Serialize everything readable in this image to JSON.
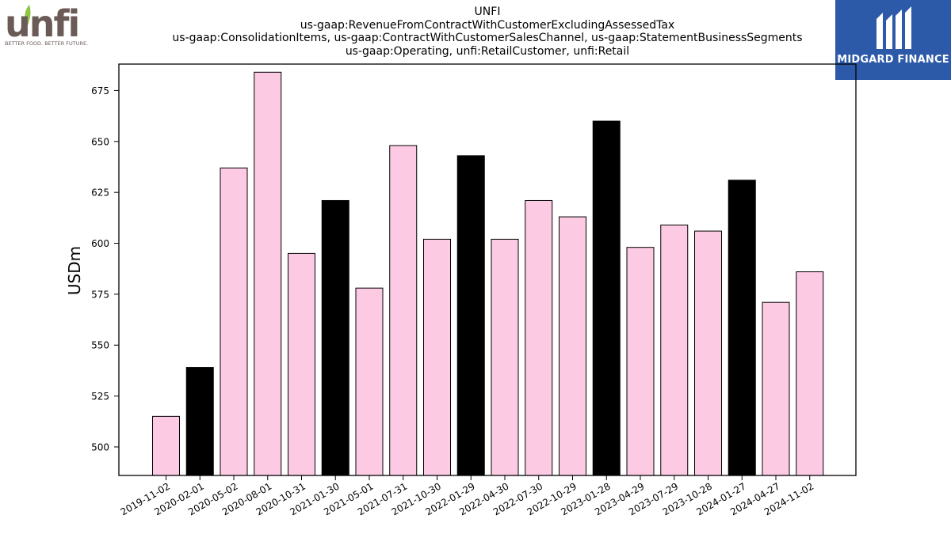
{
  "logos": {
    "left": {
      "icon": "unfi-logo",
      "text": "unfi",
      "tagline": "BETTER FOOD. BETTER FUTURE."
    },
    "right": {
      "icon": "midgard-finance-logo",
      "text": "MIDGARD FINANCE",
      "color": "#2c5aa8"
    }
  },
  "chart_data": {
    "type": "bar",
    "title_lines": [
      "UNFI",
      "us-gaap:RevenueFromContractWithCustomerExcludingAssessedTax",
      "us-gaap:ConsolidationItems, us-gaap:ContractWithCustomerSalesChannel, us-gaap:StatementBusinessSegments",
      "us-gaap:Operating, unfi:RetailCustomer, unfi:Retail"
    ],
    "xlabel": "",
    "ylabel": "USDm",
    "ylim": [
      486,
      688
    ],
    "yticks": [
      500,
      525,
      550,
      575,
      600,
      625,
      650,
      675
    ],
    "categories": [
      "2019-11-02",
      "2020-02-01",
      "2020-05-02",
      "2020-08-01",
      "2020-10-31",
      "2021-01-30",
      "2021-05-01",
      "2021-07-31",
      "2021-10-30",
      "2022-01-29",
      "2022-04-30",
      "2022-07-30",
      "2022-10-29",
      "2023-01-28",
      "2023-04-29",
      "2023-07-29",
      "2023-10-28",
      "2024-01-27",
      "2024-04-27",
      "2024-11-02"
    ],
    "values": [
      515,
      539,
      637,
      684,
      595,
      621,
      578,
      648,
      602,
      643,
      602,
      621,
      613,
      660,
      598,
      609,
      606,
      631,
      571,
      586
    ],
    "highlight": [
      false,
      true,
      false,
      false,
      false,
      true,
      false,
      false,
      false,
      true,
      false,
      false,
      false,
      true,
      false,
      false,
      false,
      true,
      false,
      false
    ],
    "colors": {
      "default": "#fccae3",
      "highlight": "#000000",
      "edge": "#000000"
    },
    "grid": false,
    "legend": "none"
  }
}
